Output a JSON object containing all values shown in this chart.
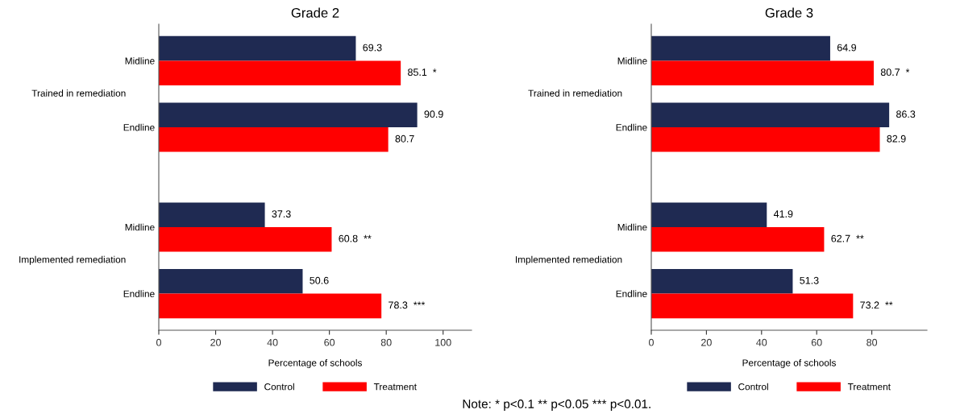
{
  "chart_data": [
    {
      "type": "bar",
      "orientation": "horizontal",
      "title": "Grade 2",
      "xlabel": "Percentage of schools",
      "categories": [
        "Midline",
        "Endline",
        "Midline",
        "Endline"
      ],
      "series": [
        {
          "name": "Control",
          "color": "#1f2a52",
          "values": [
            69.3,
            90.9,
            37.3,
            50.6
          ],
          "value_labels": [
            "69.3",
            "90.9",
            "37.3",
            "50.6"
          ]
        },
        {
          "name": "Treatment",
          "color": "#ff0000",
          "values": [
            85.1,
            80.7,
            60.8,
            78.3
          ],
          "value_labels": [
            "85.1  *",
            "80.7",
            "60.8  **",
            "78.3  ***"
          ]
        }
      ],
      "xlim": [
        0,
        110
      ],
      "xticks": [
        0,
        20,
        40,
        60,
        80,
        100
      ],
      "grid": false,
      "legend": "bottom",
      "annotations": [
        "Trained in remediation",
        "Implemented remediation"
      ]
    },
    {
      "type": "bar",
      "orientation": "horizontal",
      "title": "Grade 3",
      "xlabel": "Percentage of schools",
      "categories": [
        "Midline",
        "Endline",
        "Midline",
        "Endline"
      ],
      "series": [
        {
          "name": "Control",
          "color": "#1f2a52",
          "values": [
            64.9,
            86.3,
            41.9,
            51.3
          ],
          "value_labels": [
            "64.9",
            "86.3",
            "41.9",
            "51.3"
          ]
        },
        {
          "name": "Treatment",
          "color": "#ff0000",
          "values": [
            80.7,
            82.9,
            62.7,
            73.2
          ],
          "value_labels": [
            "80.7  *",
            "82.9",
            "62.7  **",
            "73.2  **"
          ]
        }
      ],
      "xlim": [
        0,
        100
      ],
      "xticks": [
        0,
        20,
        40,
        60,
        80
      ],
      "grid": false,
      "legend": "bottom",
      "annotations": [
        "Trained in remediation",
        "Implemented remediation",
        "Note: * p<0.1 ** p<0.05 *** p<0.01."
      ]
    }
  ]
}
